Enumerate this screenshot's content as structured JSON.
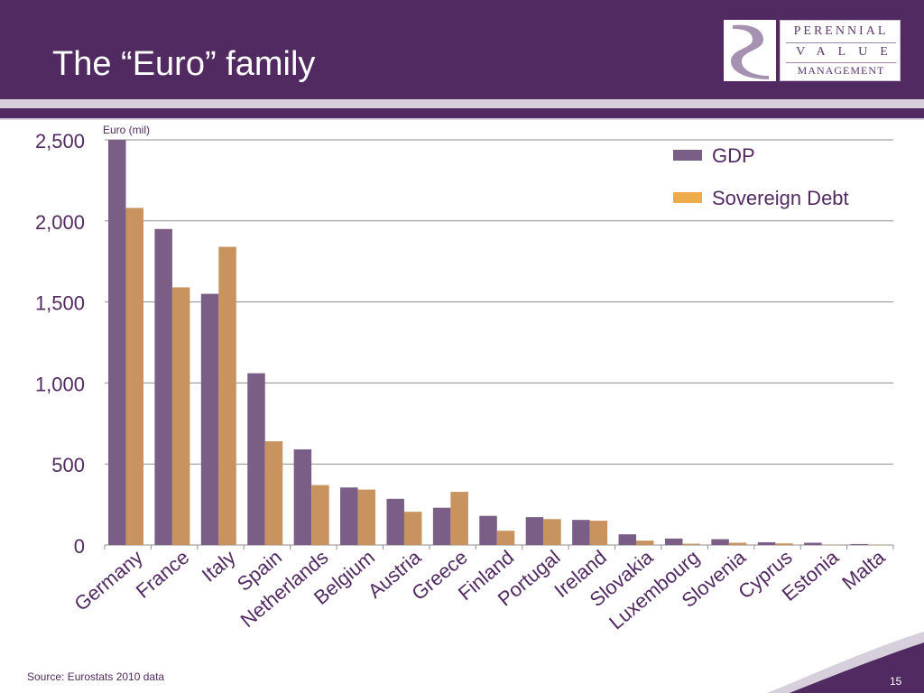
{
  "slide": {
    "title": "The “Euro” family",
    "source": "Source: Eurostats 2010 data",
    "page_number": "15"
  },
  "logo": {
    "line1": "PERENNIAL",
    "line2": "VALUE",
    "line3": "MANAGEMENT"
  },
  "colors": {
    "header": "#522a62",
    "gdp": "#7b5e86",
    "debt": "#c9935f",
    "legend_debt": "#eeab4a"
  },
  "chart_data": {
    "type": "bar",
    "title": "",
    "ylabel": "Euro (mil)",
    "xlabel": "",
    "ylim": [
      0,
      2500
    ],
    "yticks": [
      0,
      500,
      1000,
      1500,
      2000,
      2500
    ],
    "ytick_labels": [
      "0",
      "500",
      "1,000",
      "1,500",
      "2,000",
      "2,500"
    ],
    "grid": true,
    "legend_position": "top-right",
    "categories": [
      "Germany",
      "France",
      "Italy",
      "Spain",
      "Netherlands",
      "Belgium",
      "Austria",
      "Greece",
      "Finland",
      "Portugal",
      "Ireland",
      "Slovakia",
      "Luxembourg",
      "Slovenia",
      "Cyprus",
      "Estonia",
      "Malta"
    ],
    "series": [
      {
        "name": "GDP",
        "values": [
          2500,
          1950,
          1550,
          1060,
          590,
          355,
          285,
          230,
          180,
          172,
          155,
          66,
          40,
          36,
          17,
          14,
          6
        ]
      },
      {
        "name": "Sovereign Debt",
        "values": [
          2080,
          1590,
          1840,
          640,
          370,
          342,
          205,
          328,
          88,
          160,
          150,
          27,
          8,
          14,
          10,
          1,
          2
        ]
      }
    ]
  }
}
